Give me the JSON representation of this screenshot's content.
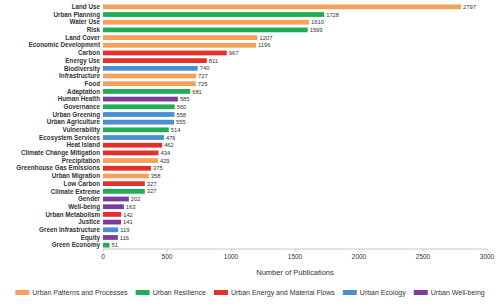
{
  "chart_data": {
    "type": "bar",
    "orientation": "horizontal",
    "stacked": true,
    "data_labels": true,
    "grid": false,
    "legend": "bottom",
    "x_label": "Number of Publications",
    "categories": [
      "Land Use",
      "Urban Planning",
      "Water Use",
      "Risk",
      "Land Cover",
      "Economic Development",
      "Carbon",
      "Energy Use",
      "Biodiversity",
      "Infrastructure",
      "Food",
      "Adaptation",
      "Human Health",
      "Governance",
      "Urban Greening",
      "Urban Agriculture",
      "Vulnerability",
      "Ecosystem Services",
      "Heat Island",
      "Climate Change Mitigation",
      "Precipitation",
      "Greenhouse Gas Emissions",
      "Urban Migration",
      "Low Carbon",
      "Climate Extreme",
      "Gender",
      "Well-being",
      "Urban Metabolism",
      "Justice",
      "Green Infrastructure",
      "Equity",
      "Green Economy"
    ],
    "series": [
      {
        "name": "Urban Patterns and Processes",
        "color": "#f5a15a",
        "values": [
          2797,
          null,
          1610,
          null,
          1207,
          1196,
          null,
          null,
          null,
          727,
          725,
          null,
          null,
          null,
          null,
          null,
          null,
          null,
          null,
          null,
          429,
          null,
          358,
          null,
          null,
          null,
          null,
          null,
          null,
          null,
          null,
          null
        ]
      },
      {
        "name": "Urban Resilience",
        "color": "#1fae57",
        "values": [
          null,
          1728,
          null,
          1599,
          null,
          null,
          null,
          null,
          null,
          null,
          null,
          681,
          null,
          560,
          null,
          null,
          514,
          null,
          null,
          null,
          null,
          null,
          null,
          null,
          327,
          null,
          null,
          null,
          null,
          null,
          null,
          51
        ]
      },
      {
        "name": "Urban Energy and Material Flows",
        "color": "#e2302b",
        "values": [
          null,
          null,
          null,
          null,
          null,
          null,
          967,
          811,
          null,
          null,
          null,
          null,
          null,
          null,
          null,
          null,
          null,
          null,
          462,
          434,
          null,
          375,
          null,
          327,
          null,
          null,
          null,
          142,
          null,
          null,
          null,
          null
        ]
      },
      {
        "name": "Urban Ecology",
        "color": "#4a8fcf",
        "values": [
          null,
          null,
          null,
          null,
          null,
          null,
          null,
          null,
          740,
          null,
          null,
          null,
          null,
          null,
          558,
          555,
          null,
          476,
          null,
          null,
          null,
          null,
          null,
          null,
          null,
          null,
          null,
          null,
          null,
          119,
          null,
          null
        ]
      },
      {
        "name": "Urban Well-being",
        "color": "#7a3d9c",
        "values": [
          null,
          null,
          null,
          null,
          null,
          null,
          null,
          null,
          null,
          null,
          null,
          null,
          585,
          null,
          null,
          null,
          null,
          null,
          null,
          null,
          null,
          null,
          null,
          null,
          null,
          202,
          163,
          null,
          141,
          null,
          116,
          null
        ]
      }
    ],
    "xlim": [
      0,
      3000
    ],
    "xticks": [
      0,
      500,
      1000,
      1500,
      2000,
      2500,
      3000
    ]
  }
}
